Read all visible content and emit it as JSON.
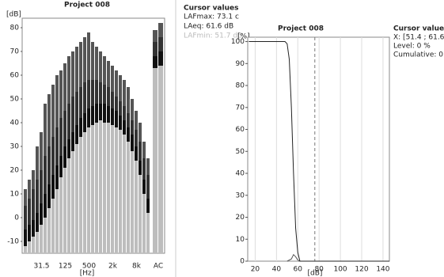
{
  "spectrum": {
    "title": "Project 008",
    "y_label": "[dB]",
    "x_label": "[Hz]",
    "ylim": [
      -15,
      84
    ],
    "yticks": [
      -10,
      0,
      10,
      20,
      30,
      40,
      50,
      60,
      70,
      80
    ],
    "categories": [
      null,
      null,
      null,
      null,
      "31.5",
      null,
      null,
      null,
      null,
      null,
      "125",
      null,
      null,
      null,
      null,
      null,
      "500",
      null,
      null,
      null,
      null,
      null,
      "2k",
      null,
      null,
      null,
      null,
      null,
      "8k",
      null,
      null,
      null
    ],
    "overall_label": "AC",
    "series": [
      {
        "color": "#555555",
        "values": [
          12,
          16,
          20,
          30,
          36,
          48,
          52,
          56,
          60,
          62,
          65,
          68,
          70,
          72,
          74,
          76,
          78,
          74,
          72,
          70,
          68,
          66,
          64,
          62,
          60,
          58,
          55,
          50,
          45,
          40,
          32,
          25
        ],
        "overall": [
          79,
          82
        ]
      },
      {
        "color": "#333333",
        "values": [
          5,
          8,
          12,
          16,
          20,
          26,
          30,
          34,
          38,
          42,
          45,
          48,
          51,
          53,
          55,
          57,
          58,
          58,
          58,
          57,
          56,
          55,
          53,
          51,
          49,
          47,
          44,
          41,
          37,
          32,
          25,
          18
        ],
        "overall": [
          74,
          76
        ]
      },
      {
        "color": "#111111",
        "values": [
          -5,
          -3,
          -1,
          2,
          6,
          10,
          14,
          18,
          22,
          26,
          30,
          33,
          36,
          39,
          42,
          44,
          46,
          47,
          48,
          48,
          48,
          47,
          46,
          45,
          43,
          41,
          38,
          35,
          30,
          24,
          16,
          8
        ],
        "overall": [
          68,
          70
        ]
      },
      {
        "color": "#bdbdbd",
        "values": [
          -12,
          -10,
          -8,
          -6,
          -3,
          0,
          4,
          8,
          12,
          17,
          21,
          25,
          28,
          31,
          34,
          36,
          38,
          39,
          40,
          41,
          40,
          40,
          39,
          38,
          37,
          35,
          32,
          28,
          24,
          18,
          10,
          2
        ],
        "overall": [
          63,
          64
        ]
      }
    ]
  },
  "cursor_left": {
    "title": "Cursor values",
    "lines": [
      "LAFmax: 73.1 c",
      "LAeq: 61.6 dB",
      "LAFmin: 51.7 dB"
    ]
  },
  "distribution": {
    "title": "Project 008",
    "y_label": "[%]",
    "x_label": "[dB]",
    "xlim": [
      13,
      146
    ],
    "ylim": [
      0,
      102
    ],
    "xticks": [
      20,
      40,
      60,
      80,
      100,
      120,
      140
    ],
    "yticks": [
      0,
      10,
      20,
      30,
      40,
      50,
      60,
      70,
      80,
      90,
      100
    ],
    "cursor_x": 76,
    "cumulative": {
      "color": "#222222",
      "x": [
        14,
        48,
        50,
        52,
        54,
        56,
        58,
        60,
        62,
        146
      ],
      "values": [
        100,
        100,
        99,
        92,
        70,
        40,
        15,
        4,
        0,
        0
      ]
    },
    "level": {
      "color": "#555555",
      "x": [
        50,
        54,
        56,
        58,
        60,
        62
      ],
      "values": [
        0,
        1,
        3,
        2,
        0.5,
        0
      ]
    }
  },
  "cursor_right": {
    "title": "Cursor values",
    "lines": [
      "X: [51.4 ; 61.6",
      "Level: 0 %",
      "Cumulative: 0 '"
    ]
  }
}
